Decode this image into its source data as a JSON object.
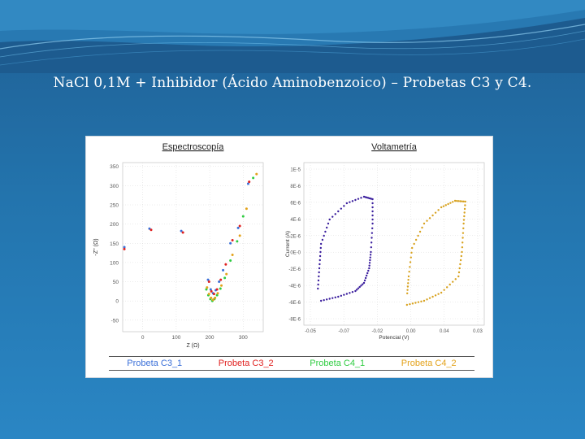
{
  "slide": {
    "title": "NaCl 0,1M + Inhibidor (Ácido Aminobenzoico) – Probetas C3 y C4."
  },
  "colors": {
    "c3_1": "#3a6fd8",
    "c3_2": "#e0201f",
    "c4_1": "#2ecc40",
    "c4_2": "#e3a21a",
    "c3_dots": "#3b1f9e",
    "c4_dots": "#d8a21f"
  },
  "legend": [
    {
      "label": "Probeta C3_1",
      "color": "#3a6fd8"
    },
    {
      "label": "Probeta C3_2",
      "color": "#e0201f"
    },
    {
      "label": "Probeta C4_1",
      "color": "#2ecc40"
    },
    {
      "label": "Probeta C4_2",
      "color": "#e3a21a"
    }
  ],
  "chart_data": [
    {
      "type": "scatter",
      "title": "Espectroscopía",
      "xlabel": "Z (Ω)",
      "ylabel": "-Z'' (Ω)",
      "xticks": [
        "0",
        "100",
        "200",
        "300"
      ],
      "yticks": [
        "350",
        "300",
        "250",
        "200",
        "150",
        "100",
        "50",
        "0",
        "-50"
      ],
      "xlim": [
        -60,
        360
      ],
      "ylim": [
        -80,
        360
      ],
      "grid": true,
      "series": [
        {
          "name": "Probeta C3_1",
          "color": "#3a6fd8",
          "points": [
            [
              -55,
              140
            ],
            [
              20,
              188
            ],
            [
              115,
              182
            ],
            [
              195,
              55
            ],
            [
              203,
              30
            ],
            [
              210,
              20
            ],
            [
              218,
              28
            ],
            [
              228,
              50
            ],
            [
              240,
              80
            ],
            [
              262,
              150
            ],
            [
              285,
              190
            ],
            [
              315,
              305
            ]
          ]
        },
        {
          "name": "Probeta C3_2",
          "color": "#e0201f",
          "points": [
            [
              -55,
              135
            ],
            [
              25,
              185
            ],
            [
              120,
              178
            ],
            [
              198,
              50
            ],
            [
              205,
              25
            ],
            [
              213,
              18
            ],
            [
              222,
              30
            ],
            [
              233,
              55
            ],
            [
              248,
              95
            ],
            [
              268,
              158
            ],
            [
              290,
              195
            ],
            [
              318,
              310
            ]
          ]
        },
        {
          "name": "Probeta C4_1",
          "color": "#2ecc40",
          "points": [
            [
              190,
              30
            ],
            [
              196,
              15
            ],
            [
              202,
              5
            ],
            [
              208,
              0
            ],
            [
              214,
              5
            ],
            [
              222,
              15
            ],
            [
              232,
              32
            ],
            [
              245,
              60
            ],
            [
              262,
              105
            ],
            [
              282,
              155
            ],
            [
              300,
              220
            ],
            [
              330,
              320
            ]
          ]
        },
        {
          "name": "Probeta C4_2",
          "color": "#e3a21a",
          "points": [
            [
              192,
              35
            ],
            [
              198,
              18
            ],
            [
              204,
              8
            ],
            [
              210,
              3
            ],
            [
              216,
              8
            ],
            [
              224,
              20
            ],
            [
              235,
              40
            ],
            [
              250,
              70
            ],
            [
              268,
              120
            ],
            [
              290,
              170
            ],
            [
              310,
              240
            ],
            [
              340,
              330
            ]
          ]
        }
      ]
    },
    {
      "type": "scatter",
      "title": "Voltametría",
      "xlabel": "Potencial (V)",
      "ylabel": "Current (A)",
      "xticks": [
        "-0.05",
        "-0.07",
        "-0.02",
        "0.00",
        "0.04",
        "0.03"
      ],
      "yticks": [
        "1E-5",
        "8E-6",
        "6E-6",
        "4E-6",
        "2E-6",
        "0E-0",
        "-2E-6",
        "-4E-6",
        "-6E-6",
        "-8E-6"
      ],
      "grid": true,
      "series": [
        {
          "name": "Probeta C3",
          "color": "#3b1f9e",
          "points": [
            [
              -0.05,
              -6.0
            ],
            [
              -0.04,
              -5.5
            ],
            [
              -0.03,
              -4.8
            ],
            [
              -0.025,
              -3.8
            ],
            [
              -0.022,
              -2.0
            ],
            [
              -0.021,
              0.0
            ],
            [
              -0.02,
              3.5
            ],
            [
              -0.02,
              6.5
            ],
            [
              -0.025,
              6.8
            ],
            [
              -0.035,
              6.0
            ],
            [
              -0.045,
              4.0
            ],
            [
              -0.05,
              1.0
            ],
            [
              -0.051,
              -2.0
            ],
            [
              -0.052,
              -5.0
            ]
          ]
        },
        {
          "name": "Probeta C4",
          "color": "#d8a21f",
          "points": [
            [
              0.0,
              -6.5
            ],
            [
              0.01,
              -6.0
            ],
            [
              0.02,
              -5.0
            ],
            [
              0.03,
              -3.0
            ],
            [
              0.032,
              0.0
            ],
            [
              0.033,
              3.5
            ],
            [
              0.034,
              6.2
            ],
            [
              0.028,
              6.3
            ],
            [
              0.02,
              5.5
            ],
            [
              0.01,
              3.5
            ],
            [
              0.003,
              0.5
            ],
            [
              0.001,
              -3.0
            ],
            [
              0.0,
              -5.5
            ]
          ]
        }
      ]
    }
  ]
}
